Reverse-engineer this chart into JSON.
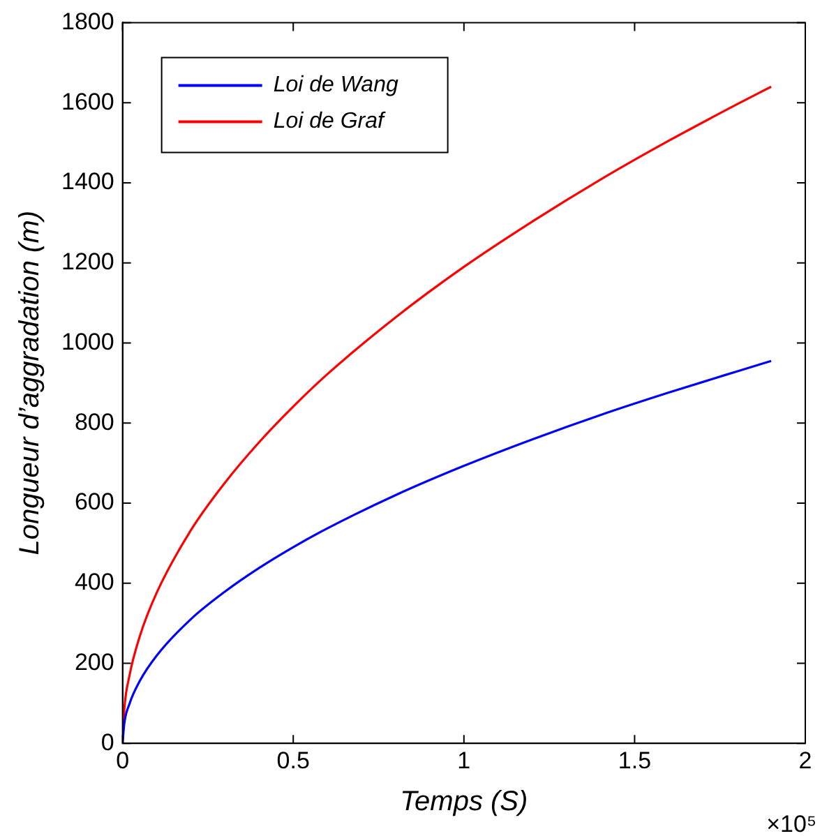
{
  "chart_data": {
    "type": "line",
    "xlabel": "Temps (S)",
    "ylabel": "Longueur d’aggradation (m)",
    "annotations": [
      "×10⁵"
    ],
    "x": [
      0,
      0.005,
      0.02,
      0.05,
      0.1,
      0.2,
      0.3,
      0.4,
      0.5,
      0.6,
      0.8,
      1.0,
      1.2,
      1.4,
      1.6,
      1.8,
      1.9
    ],
    "series": [
      {
        "name": "Loi de Wang",
        "color": "#0000ff",
        "values": [
          0,
          49,
          98,
          155,
          219,
          310,
          379,
          438,
          490,
          537,
          620,
          693,
          759,
          820,
          876,
          929,
          955
        ]
      },
      {
        "name": "Loi de Graf",
        "color": "#ff0000",
        "values": [
          0,
          84,
          168,
          266,
          376,
          532,
          651,
          752,
          841,
          922,
          1064,
          1190,
          1303,
          1408,
          1505,
          1596,
          1640
        ]
      }
    ],
    "xlim": [
      0,
      2
    ],
    "xticks": [
      0,
      0.5,
      1,
      1.5,
      2
    ],
    "ylim": [
      0,
      1800
    ],
    "yticks": [
      0,
      200,
      400,
      600,
      800,
      1000,
      1200,
      1400,
      1600,
      1800
    ],
    "grid": false,
    "legend": "top left",
    "marker": "none",
    "line_style": "solid"
  }
}
